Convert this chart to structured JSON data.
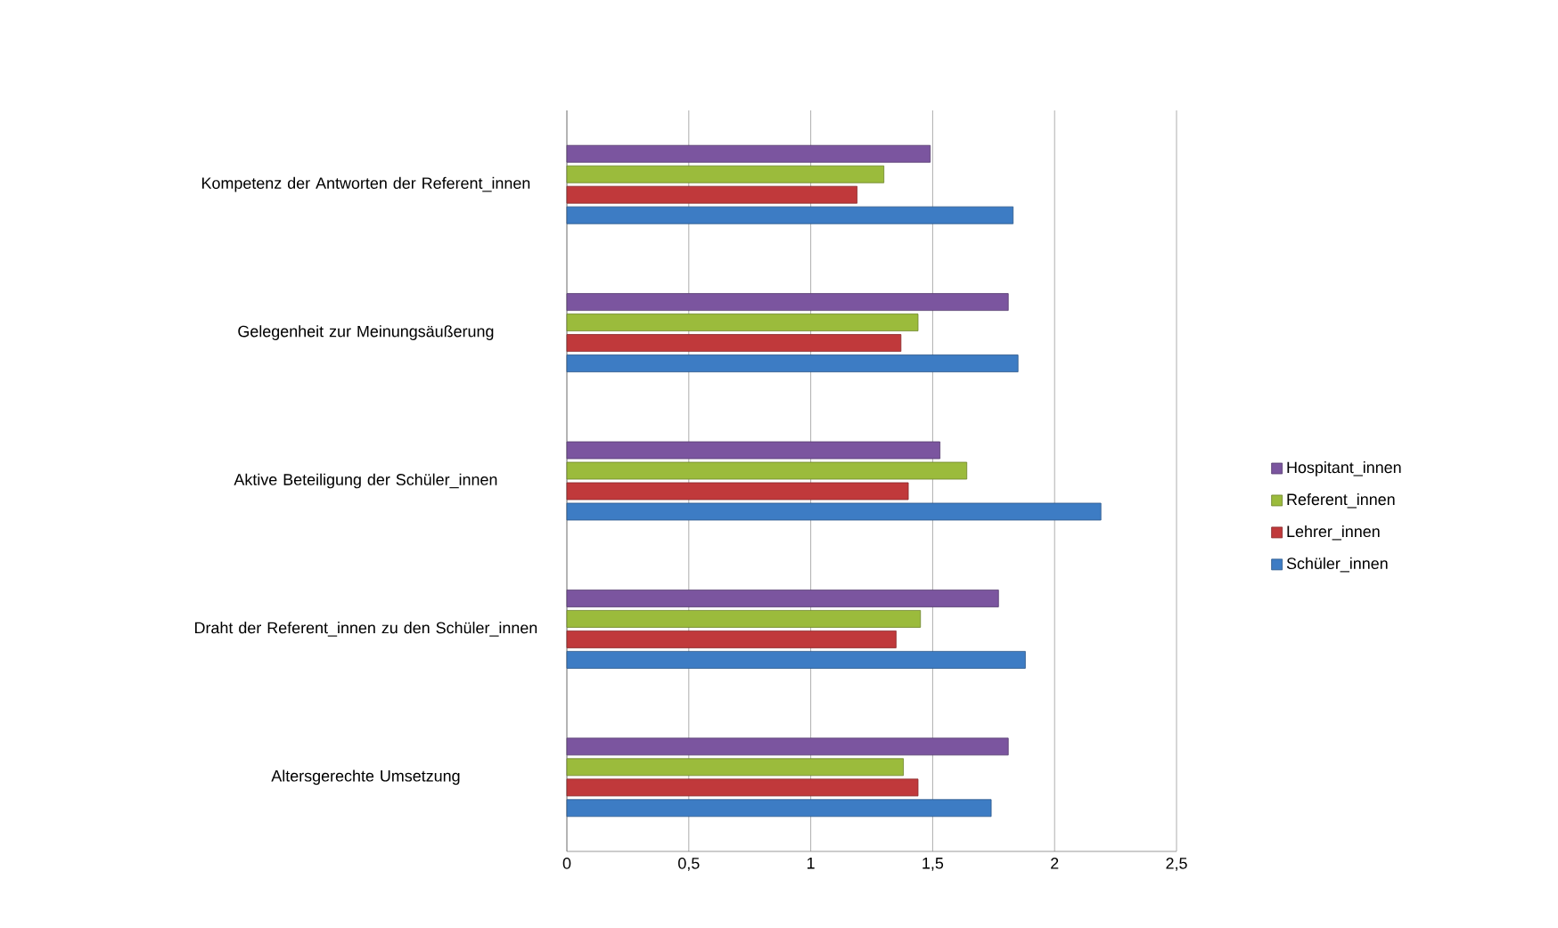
{
  "chart_data": {
    "type": "bar",
    "orientation": "horizontal",
    "categories": [
      "Kompetenz der Antworten der Referent_innen",
      "Gelegenheit zur Meinungsäußerung",
      "Aktive Beteiligung der Schüler_innen",
      "Draht der Referent_innen zu den Schüler_innen",
      "Altersgerechte Umsetzung"
    ],
    "series": [
      {
        "name": "Hospitant_innen",
        "color": "#7b559f",
        "values": [
          1.49,
          1.81,
          1.53,
          1.77,
          1.81
        ]
      },
      {
        "name": "Referent_innen",
        "color": "#9bbb3c",
        "values": [
          1.3,
          1.44,
          1.64,
          1.45,
          1.38
        ]
      },
      {
        "name": "Lehrer_innen",
        "color": "#c0393b",
        "values": [
          1.19,
          1.37,
          1.4,
          1.35,
          1.44
        ]
      },
      {
        "name": "Schüler_innen",
        "color": "#3d7cc4",
        "values": [
          1.83,
          1.85,
          2.19,
          1.88,
          1.74
        ]
      }
    ],
    "xlim": [
      0,
      2.5
    ],
    "xticks": [
      0,
      {
        "value": 0.5,
        "label": "0,5"
      },
      1,
      {
        "value": 1.5,
        "label": "1,5"
      },
      2,
      {
        "value": 2.5,
        "label": "2,5"
      }
    ],
    "grid": "x",
    "legend": "right"
  }
}
